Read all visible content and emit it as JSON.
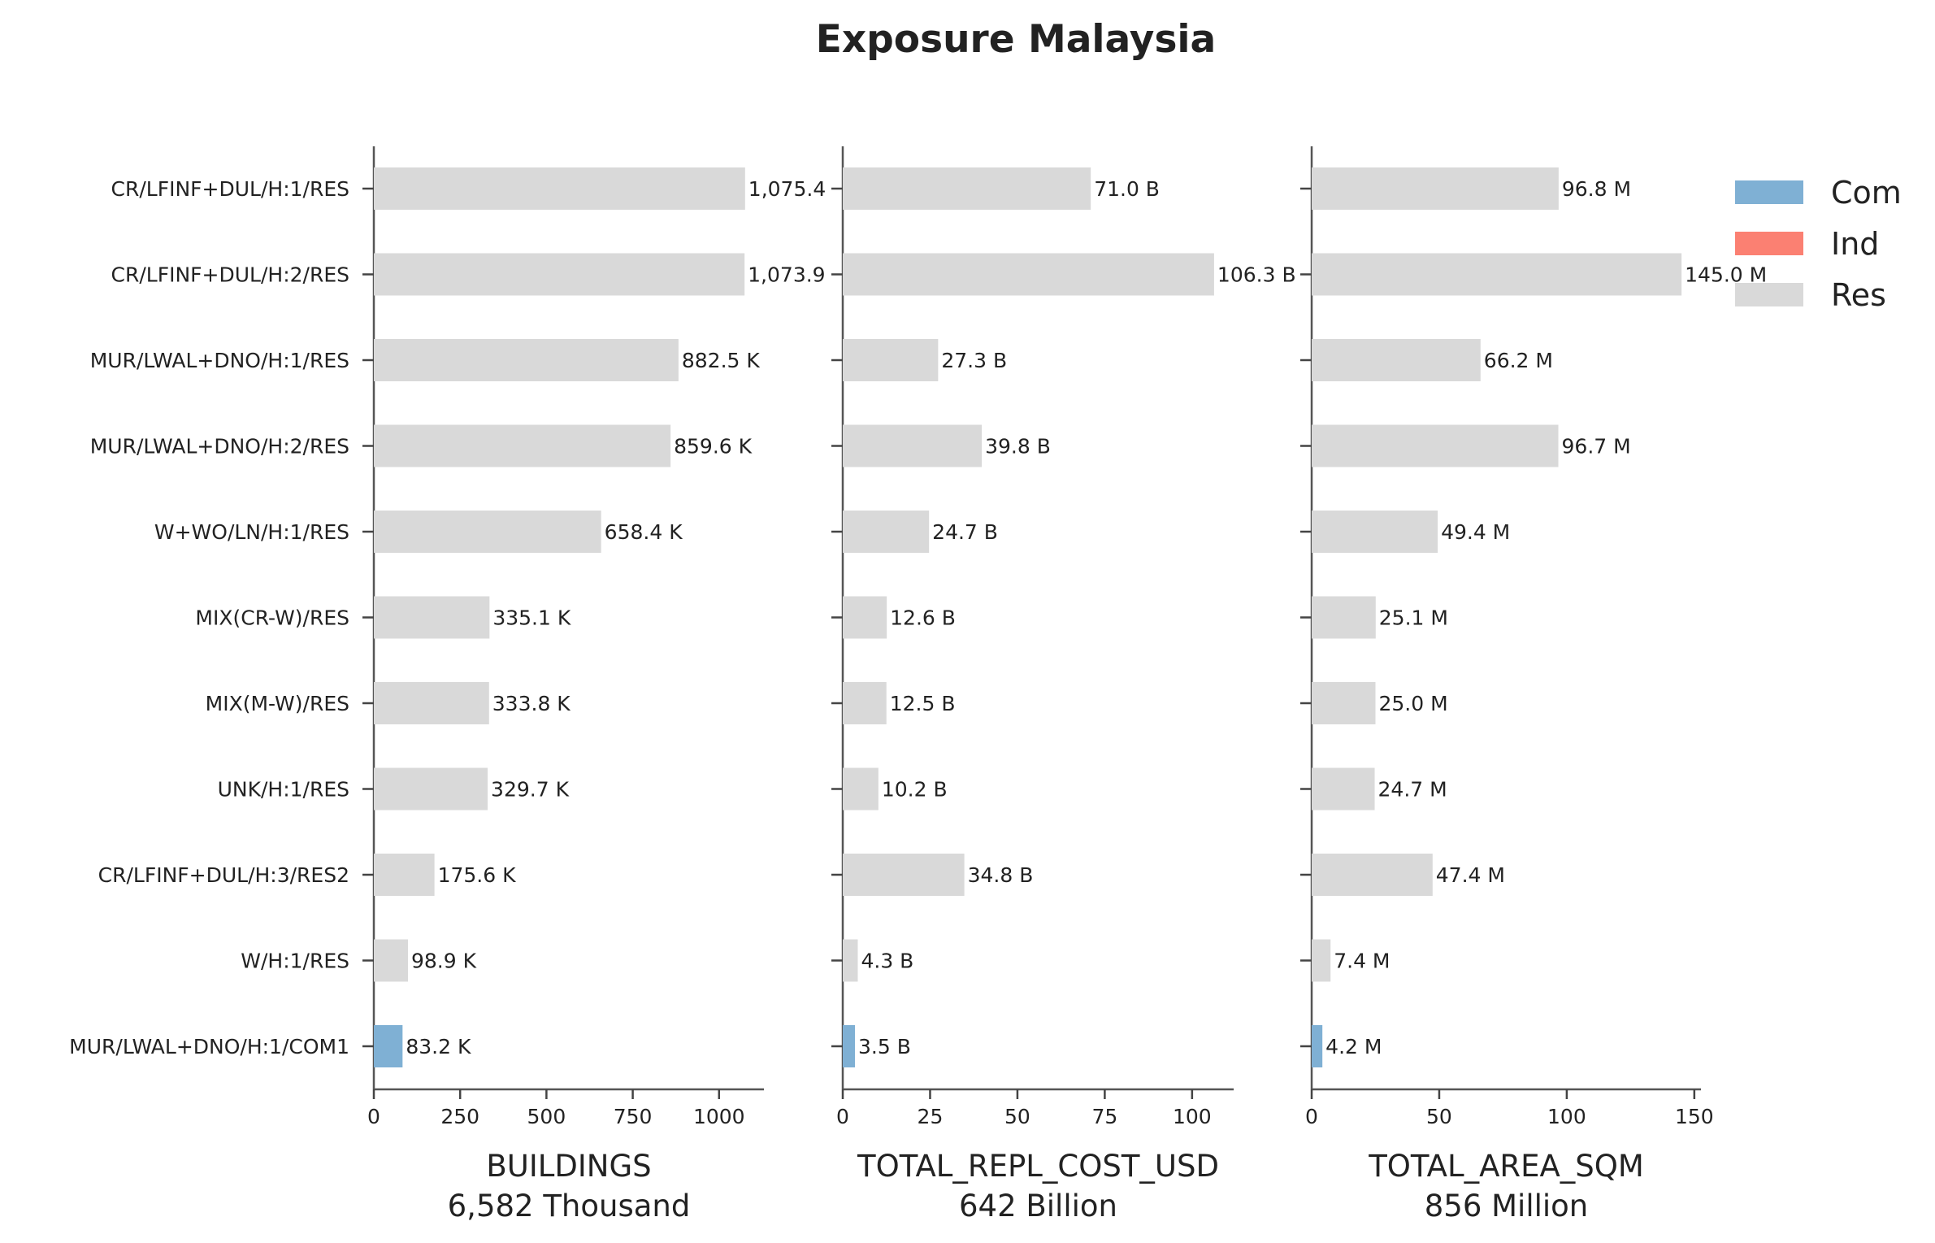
{
  "chart_data": {
    "type": "bar",
    "orientation": "horizontal",
    "title": "Exposure Malaysia",
    "categories": [
      "CR/LFINF+DUL/H:1/RES",
      "CR/LFINF+DUL/H:2/RES",
      "MUR/LWAL+DNO/H:1/RES",
      "MUR/LWAL+DNO/H:2/RES",
      "W+WO/LN/H:1/RES",
      "MIX(CR-W)/RES",
      "MIX(M-W)/RES",
      "UNK/H:1/RES",
      "CR/LFINF+DUL/H:3/RES2",
      "W/H:1/RES",
      "MUR/LWAL+DNO/H:1/COM1"
    ],
    "occupancy": [
      "Res",
      "Res",
      "Res",
      "Res",
      "Res",
      "Res",
      "Res",
      "Res",
      "Res",
      "Res",
      "Com"
    ],
    "legend": {
      "position": "top-right",
      "entries": [
        {
          "name": "Com",
          "color": "#7fb0d4"
        },
        {
          "name": "Ind",
          "color": "#fb8072"
        },
        {
          "name": "Res",
          "color": "#d9d9d9"
        }
      ]
    },
    "panels": [
      {
        "xlabel": "BUILDINGS",
        "subtitle": "6,582 Thousand",
        "xlim": [
          0,
          1130
        ],
        "ticks": [
          0,
          250,
          500,
          750,
          1000
        ],
        "tick_labels": [
          "0",
          "250",
          "500",
          "750",
          "1000"
        ],
        "values": [
          1075.4,
          1073.9,
          882.5,
          859.6,
          658.4,
          335.1,
          333.8,
          329.7,
          175.6,
          98.9,
          83.2
        ],
        "labels": [
          "1,075.4",
          "1,073.9",
          "882.5 K",
          "859.6 K",
          "658.4 K",
          "335.1 K",
          "333.8 K",
          "329.7 K",
          "175.6 K",
          "98.9 K",
          "83.2 K"
        ]
      },
      {
        "xlabel": "TOTAL_REPL_COST_USD",
        "subtitle": "642 Billion",
        "xlim": [
          0,
          111.9
        ],
        "ticks": [
          0,
          25,
          50,
          75,
          100
        ],
        "tick_labels": [
          "0",
          "25",
          "50",
          "75",
          "100"
        ],
        "values": [
          71.0,
          106.3,
          27.3,
          39.8,
          24.7,
          12.6,
          12.5,
          10.2,
          34.8,
          4.3,
          3.5
        ],
        "labels": [
          "71.0 B",
          "106.3 B",
          "27.3 B",
          "39.8 B",
          "24.7 B",
          "12.6 B",
          "12.5 B",
          "10.2 B",
          "34.8 B",
          "4.3 B",
          "3.5 B"
        ]
      },
      {
        "xlabel": "TOTAL_AREA_SQM",
        "subtitle": "856 Million",
        "xlim": [
          0,
          152.6
        ],
        "ticks": [
          0,
          50,
          100,
          150
        ],
        "tick_labels": [
          "0",
          "50",
          "100",
          "150"
        ],
        "values": [
          96.8,
          145.0,
          66.2,
          96.7,
          49.4,
          25.1,
          25.0,
          24.7,
          47.4,
          7.4,
          4.2
        ],
        "labels": [
          "96.8 M",
          "145.0 M",
          "66.2 M",
          "96.7 M",
          "49.4 M",
          "25.1 M",
          "25.0 M",
          "24.7 M",
          "47.4 M",
          "7.4 M",
          "4.2 M"
        ]
      }
    ]
  }
}
